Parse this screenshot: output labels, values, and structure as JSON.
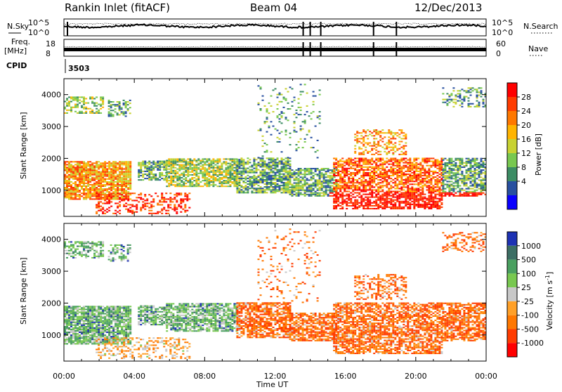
{
  "header": {
    "title": "Rankin Inlet (fitACF)",
    "beam": "Beam 04",
    "date": "12/Dec/2013"
  },
  "top_panels": {
    "nsky_label": "N.Sky",
    "nsearch_label": "N.Search",
    "nsky_ticks": [
      "10^5",
      "10^0"
    ],
    "nsearch_ticks": [
      "10^5",
      "10^0"
    ],
    "freq_label_1": "Freq.",
    "freq_label_2": "[MHz]",
    "freq_ticks": [
      "18",
      "8"
    ],
    "nave_label": "Nave",
    "nave_ticks": [
      "60",
      "0"
    ],
    "cpid_label": "CPID",
    "cpid_value": "3503"
  },
  "chart_data": [
    {
      "type": "heatmap",
      "name": "power",
      "ylabel": "Slant Range [km]",
      "xlabel": "",
      "x_ticks": [
        "00:00",
        "04:00",
        "08:00",
        "12:00",
        "16:00",
        "20:00",
        "00:00"
      ],
      "y_ticks": [
        "1000",
        "2000",
        "3000",
        "4000"
      ],
      "xlim_hours": [
        0,
        24
      ],
      "ylim_km": [
        180,
        4500
      ],
      "colorbar": {
        "label": "Power [dB]",
        "ticks": [
          "28",
          "24",
          "20",
          "16",
          "12",
          "8",
          "4"
        ],
        "colors": [
          "#ff0000",
          "#ff3c00",
          "#ff7800",
          "#ffb400",
          "#c8d232",
          "#78c850",
          "#3c8c64",
          "#2850a0",
          "#0a00ff"
        ]
      }
    },
    {
      "type": "heatmap",
      "name": "velocity",
      "ylabel": "Slant Range [km]",
      "xlabel": "Time UT",
      "x_ticks": [
        "00:00",
        "04:00",
        "08:00",
        "12:00",
        "16:00",
        "20:00",
        "00:00"
      ],
      "y_ticks": [
        "1000",
        "2000",
        "3000",
        "4000"
      ],
      "xlim_hours": [
        0,
        24
      ],
      "ylim_km": [
        180,
        4500
      ],
      "colorbar": {
        "label": "Velocity [m s^-1]",
        "ticks": [
          "1000",
          "500",
          "100",
          "25",
          "-25",
          "-100",
          "-500",
          "-1000"
        ],
        "colors": [
          "#1e32b4",
          "#3c6e64",
          "#4aa060",
          "#78c850",
          "#c8c8c8",
          "#ffa028",
          "#ff7800",
          "#ff3c00",
          "#ff0000"
        ]
      }
    }
  ]
}
